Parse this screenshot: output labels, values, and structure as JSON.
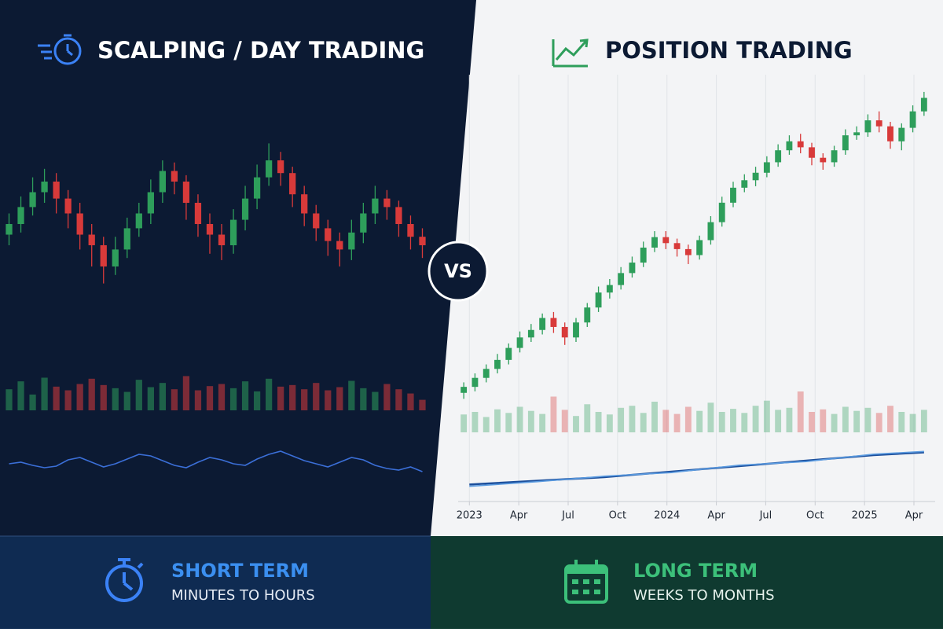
{
  "chart_data": [
    {
      "type": "candlestick",
      "title": "SCALPING / DAY TRADING",
      "up_color": "#2e9e5b",
      "down_color": "#d83a3a",
      "ylim": [
        0,
        100
      ],
      "open": [
        45,
        50,
        58,
        65,
        70,
        62,
        55,
        45,
        40,
        30,
        38,
        48,
        55,
        65,
        75,
        70,
        60,
        50,
        45,
        40,
        52,
        62,
        72,
        80,
        74,
        64,
        55,
        48,
        42,
        38,
        46,
        55,
        62,
        58,
        50,
        44
      ],
      "high": [
        55,
        63,
        72,
        76,
        74,
        66,
        60,
        50,
        44,
        44,
        53,
        60,
        71,
        80,
        79,
        73,
        64,
        55,
        50,
        57,
        68,
        78,
        88,
        84,
        77,
        68,
        59,
        52,
        46,
        52,
        60,
        68,
        66,
        61,
        54,
        48
      ],
      "low": [
        40,
        46,
        54,
        60,
        55,
        48,
        38,
        30,
        22,
        26,
        34,
        44,
        50,
        60,
        64,
        52,
        44,
        36,
        33,
        36,
        47,
        57,
        68,
        68,
        58,
        49,
        42,
        35,
        30,
        33,
        41,
        50,
        52,
        44,
        38,
        34
      ],
      "close": [
        50,
        58,
        65,
        70,
        62,
        55,
        45,
        40,
        30,
        38,
        48,
        55,
        65,
        75,
        70,
        60,
        50,
        45,
        40,
        52,
        62,
        72,
        80,
        74,
        64,
        55,
        48,
        42,
        38,
        46,
        55,
        62,
        58,
        50,
        44,
        40
      ],
      "volume": [
        40,
        55,
        30,
        62,
        45,
        38,
        50,
        60,
        48,
        42,
        35,
        58,
        44,
        52,
        40,
        65,
        38,
        46,
        50,
        42,
        55,
        36,
        60,
        45,
        48,
        40,
        52,
        38,
        44,
        56,
        42,
        35,
        50,
        40,
        32,
        20
      ],
      "volume_ylim": [
        0,
        100
      ],
      "indicator_ylim": [
        20,
        80
      ],
      "indicator_series": [
        {
          "color": "#3b6fd8",
          "values": [
            50,
            52,
            48,
            45,
            47,
            55,
            58,
            52,
            46,
            50,
            56,
            62,
            60,
            54,
            48,
            45,
            52,
            58,
            55,
            50,
            48,
            56,
            62,
            66,
            60,
            54,
            50,
            46,
            52,
            58,
            55,
            48,
            44,
            42,
            46,
            40
          ]
        }
      ]
    },
    {
      "type": "candlestick",
      "title": "POSITION TRADING",
      "up_color": "#2e9e5b",
      "down_color": "#d83a3a",
      "ylim": [
        100,
        310
      ],
      "xlim": [
        0,
        42
      ],
      "grid": true,
      "xticks": [
        {
          "value": 1,
          "label": "2023"
        },
        {
          "value": 5.4,
          "label": "Apr"
        },
        {
          "value": 9.8,
          "label": "Jul"
        },
        {
          "value": 14.2,
          "label": "Oct"
        },
        {
          "value": 18.6,
          "label": "2024"
        },
        {
          "value": 23,
          "label": "Apr"
        },
        {
          "value": 27.4,
          "label": "Jul"
        },
        {
          "value": 31.8,
          "label": "Oct"
        },
        {
          "value": 36.2,
          "label": "2025"
        },
        {
          "value": 40.6,
          "label": "Apr"
        }
      ],
      "open": [
        108,
        112,
        118,
        124,
        130,
        138,
        145,
        150,
        158,
        152,
        145,
        155,
        165,
        175,
        180,
        188,
        195,
        205,
        212,
        208,
        204,
        200,
        210,
        222,
        235,
        245,
        250,
        255,
        262,
        270,
        276,
        272,
        265,
        262,
        270,
        280,
        282,
        290,
        286,
        276,
        285,
        296
      ],
      "high": [
        115,
        121,
        127,
        134,
        141,
        149,
        154,
        161,
        162,
        155,
        158,
        168,
        179,
        184,
        192,
        199,
        209,
        216,
        216,
        211,
        207,
        213,
        226,
        239,
        249,
        254,
        259,
        266,
        274,
        280,
        281,
        275,
        268,
        273,
        284,
        286,
        294,
        296,
        289,
        288,
        300,
        309
      ],
      "low": [
        104,
        109,
        115,
        121,
        127,
        135,
        142,
        147,
        148,
        140,
        142,
        152,
        162,
        171,
        177,
        185,
        192,
        202,
        204,
        199,
        194,
        197,
        207,
        219,
        232,
        242,
        246,
        252,
        259,
        267,
        268,
        260,
        257,
        259,
        267,
        277,
        279,
        282,
        271,
        270,
        282,
        293
      ],
      "close": [
        112,
        118,
        124,
        130,
        138,
        145,
        150,
        158,
        152,
        145,
        155,
        165,
        175,
        180,
        188,
        195,
        205,
        212,
        208,
        204,
        200,
        210,
        222,
        235,
        245,
        250,
        255,
        262,
        270,
        276,
        272,
        265,
        262,
        270,
        280,
        282,
        290,
        286,
        276,
        285,
        296,
        305
      ],
      "volume": [
        35,
        40,
        30,
        45,
        38,
        50,
        42,
        36,
        70,
        44,
        32,
        55,
        40,
        35,
        48,
        52,
        38,
        60,
        44,
        36,
        50,
        42,
        58,
        40,
        46,
        38,
        52,
        62,
        44,
        48,
        80,
        40,
        45,
        36,
        50,
        42,
        48,
        38,
        52,
        40,
        36,
        44
      ],
      "volume_ylim": [
        0,
        100
      ],
      "indicator_ylim": [
        0,
        60
      ],
      "indicator_x": [
        1,
        7,
        13,
        19,
        25,
        31,
        37,
        41.5
      ],
      "indicator_series": [
        {
          "color": "#1c4f9c",
          "values": [
            10,
            14,
            18,
            24,
            30,
            36,
            42,
            45
          ]
        },
        {
          "color": "#5b9be0",
          "values": [
            8,
            13,
            19,
            23,
            31,
            35,
            43,
            46
          ]
        }
      ]
    }
  ],
  "vs": "VS",
  "footer": [
    {
      "title": "SHORT TERM",
      "subtitle": "MINUTES TO HOURS"
    },
    {
      "title": "LONG TERM",
      "subtitle": "WEEKS TO MONTHS"
    }
  ]
}
